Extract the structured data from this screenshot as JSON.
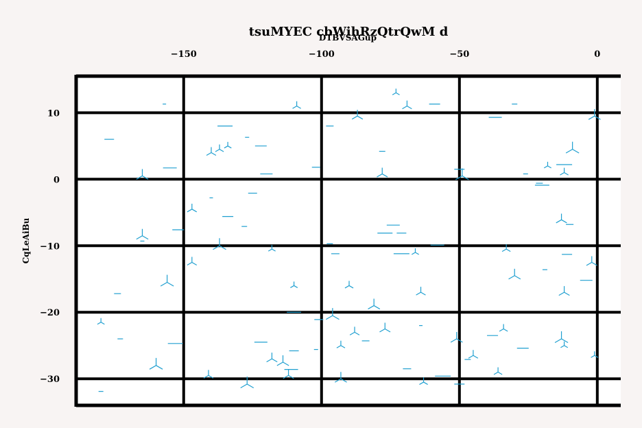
{
  "chart_data": {
    "type": "scatter",
    "title": "tsuMYEC cbWihRzQtrQwM d",
    "xlabel": "DTBVSAGup",
    "ylabel": "CqLeAiBu",
    "xlim": [
      -189,
      8.5
    ],
    "ylim": [
      -34,
      15.5
    ],
    "x_axis_position": "top",
    "x_ticks": [
      -150,
      -100,
      -50,
      0
    ],
    "x_tick_labels": [
      "−150",
      "−100",
      "−50",
      "0"
    ],
    "y_ticks": [
      10,
      0,
      -10,
      -20,
      -30
    ],
    "y_tick_labels": [
      "10",
      "0",
      "−10",
      "−20",
      "−30"
    ],
    "grid": true,
    "marker_color": "#1f9fd0",
    "series": [
      {
        "marker": "tri_down",
        "points": [
          [
            -73,
            13
          ],
          [
            -109,
            11
          ],
          [
            -69,
            11
          ],
          [
            -87,
            9.5
          ],
          [
            -1,
            9.5
          ],
          [
            -9,
            4.5
          ],
          [
            -134,
            5
          ],
          [
            -137,
            4.5
          ],
          [
            -140,
            4
          ],
          [
            -78,
            0.8
          ],
          [
            -165,
            0.5
          ],
          [
            -49,
            0.5
          ],
          [
            -18,
            2
          ],
          [
            -12,
            1
          ],
          [
            -147,
            -4.5
          ],
          [
            -13,
            -6.1
          ],
          [
            -165,
            -8.5
          ],
          [
            -137,
            -10
          ],
          [
            -118,
            -10.5
          ],
          [
            -33,
            -10.5
          ],
          [
            -147,
            -12.5
          ],
          [
            -2,
            -12.5
          ],
          [
            -30,
            -14.5
          ],
          [
            -156,
            -15.5
          ],
          [
            -110,
            -16
          ],
          [
            -90,
            -16
          ],
          [
            -64,
            -17
          ],
          [
            -12,
            -17
          ],
          [
            -81,
            -19
          ],
          [
            -96,
            -20.5
          ],
          [
            -180,
            -21.5
          ],
          [
            -34,
            -22.5
          ],
          [
            -88,
            -23
          ],
          [
            -77,
            -22.5
          ],
          [
            -51,
            -24
          ],
          [
            -13,
            -24
          ],
          [
            -12,
            -25
          ],
          [
            -93,
            -25
          ],
          [
            -45,
            -26.5
          ],
          [
            -118,
            -27
          ],
          [
            -114,
            -27.5
          ],
          [
            -160,
            -28
          ],
          [
            -1,
            -26.5
          ],
          [
            -36,
            -29
          ],
          [
            -141,
            -29.5
          ],
          [
            -112,
            -29.5
          ],
          [
            -93,
            -30
          ],
          [
            -127,
            -30.8
          ],
          [
            -66,
            -11
          ],
          [
            -63,
            -30.5
          ]
        ]
      },
      {
        "marker": "hline",
        "points": [
          [
            -157,
            11.3
          ],
          [
            -59,
            11.3
          ],
          [
            -30,
            11.3
          ],
          [
            -37,
            9.3
          ],
          [
            -97,
            8
          ],
          [
            -135,
            8
          ],
          [
            -177,
            6
          ],
          [
            -127,
            6.3
          ],
          [
            -122,
            5
          ],
          [
            -78,
            4.2
          ],
          [
            -155,
            1.7
          ],
          [
            -102,
            1.8
          ],
          [
            -12,
            2.2
          ],
          [
            -50,
            1.5
          ],
          [
            -26,
            0.8
          ],
          [
            -120,
            0.8
          ],
          [
            -21,
            -0.6
          ],
          [
            -20,
            -0.9
          ],
          [
            -125,
            -2.1
          ],
          [
            -140,
            -2.8
          ],
          [
            -134,
            -5.6
          ],
          [
            -128,
            -7.1
          ],
          [
            -74,
            -6.9
          ],
          [
            -10,
            -6.8
          ],
          [
            -77,
            -8.1
          ],
          [
            -71,
            -8.1
          ],
          [
            -165,
            -9.3
          ],
          [
            -152,
            -7.6
          ],
          [
            -97,
            -9.7
          ],
          [
            -58,
            -9.9
          ],
          [
            -95,
            -11.2
          ],
          [
            -71,
            -11.2
          ],
          [
            -11,
            -11.3
          ],
          [
            -19,
            -13.6
          ],
          [
            -4,
            -15.2
          ],
          [
            -174,
            -17.2
          ],
          [
            -110,
            -20
          ],
          [
            -101,
            -21.1
          ],
          [
            -64,
            -22
          ],
          [
            -38,
            -23.5
          ],
          [
            -173,
            -24
          ],
          [
            -122,
            -24.5
          ],
          [
            -84,
            -24.3
          ],
          [
            -153,
            -24.7
          ],
          [
            -110,
            -25.8
          ],
          [
            -102,
            -25.6
          ],
          [
            -27,
            -25.4
          ],
          [
            -47,
            -27.1
          ],
          [
            -111,
            -28.6
          ],
          [
            -69,
            -28.5
          ],
          [
            -56,
            -29.6
          ],
          [
            -50,
            -30.8
          ],
          [
            -180,
            -31.9
          ]
        ]
      }
    ]
  }
}
